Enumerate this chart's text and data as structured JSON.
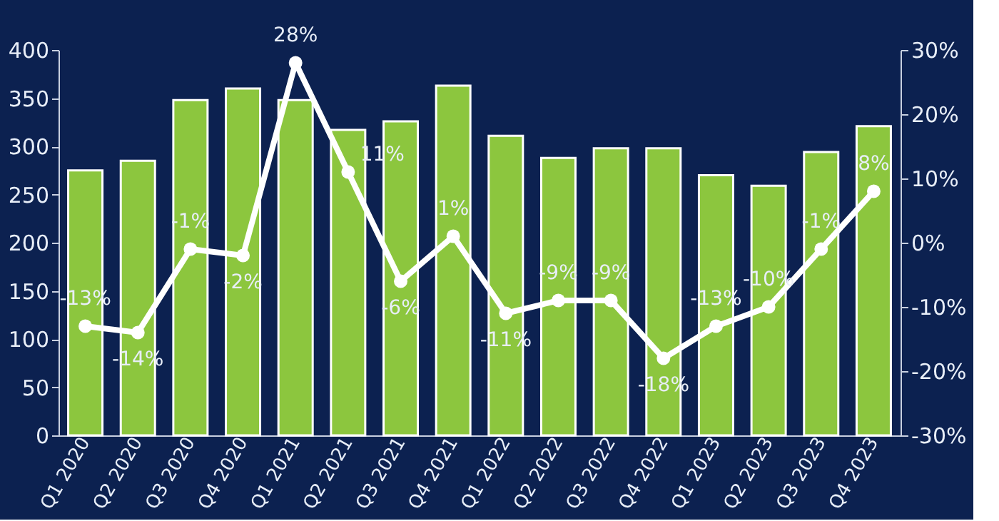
{
  "chart_data": {
    "type": "bar",
    "categories": [
      "Q1 2020",
      "Q2 2020",
      "Q3 2020",
      "Q4 2020",
      "Q1 2021",
      "Q2 2021",
      "Q3 2021",
      "Q4 2021",
      "Q1 2022",
      "Q2 2022",
      "Q3 2022",
      "Q4 2022",
      "Q1 2023",
      "Q2 2023",
      "Q3 2023",
      "Q4 2023"
    ],
    "series": [
      {
        "type": "bar",
        "color": "#8cc63e",
        "values": [
          275,
          285,
          348,
          360,
          348,
          317,
          326,
          363,
          311,
          288,
          298,
          298,
          270,
          259,
          294,
          321
        ]
      },
      {
        "type": "line",
        "axis": "y2",
        "color": "#ffffff",
        "marker": "circle",
        "values": [
          -13,
          -14,
          -1,
          -2,
          28,
          11,
          -6,
          1,
          -11,
          -9,
          -9,
          -18,
          -13,
          -10,
          -1,
          8
        ],
        "value_labels": [
          "-13%",
          "-14%",
          "-1%",
          "-2%",
          "28%",
          "11%",
          "-6%",
          "1%",
          "-11%",
          "-9%",
          "-9%",
          "-18%",
          "-13%",
          "-10%",
          "-1%",
          "8%"
        ]
      }
    ],
    "ylim": [
      0,
      400
    ],
    "yticks": [
      0,
      50,
      100,
      150,
      200,
      250,
      300,
      350,
      400
    ],
    "y2lim": [
      -30,
      30
    ],
    "y2ticks": [
      {
        "value": -30,
        "label": "-30%"
      },
      {
        "value": -20,
        "label": "-20%"
      },
      {
        "value": -10,
        "label": "-10%"
      },
      {
        "value": 0,
        "label": "0%"
      },
      {
        "value": 10,
        "label": "10%"
      },
      {
        "value": 20,
        "label": "20%"
      },
      {
        "value": 30,
        "label": "30%"
      }
    ],
    "grid": false
  }
}
